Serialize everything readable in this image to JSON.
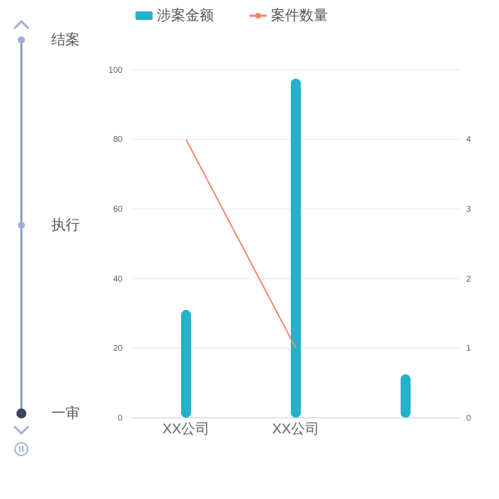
{
  "chart_data": {
    "type": "bar",
    "categories": [
      "XX公司",
      "XX公司",
      null
    ],
    "series": [
      {
        "name": "涉案金额",
        "color": "#26b0cc",
        "values": [
          31,
          97.5,
          12.5
        ]
      },
      {
        "name": "案件数量",
        "type": "line",
        "axis": "y2",
        "color": "#f4876a",
        "values": [
          4,
          1,
          null
        ]
      }
    ],
    "ylim": [
      0,
      100
    ],
    "yticks": [
      0,
      20,
      40,
      60,
      80,
      100
    ],
    "y2lim": [
      0,
      5
    ],
    "y2ticks": [
      0,
      1,
      2,
      3,
      4
    ],
    "grid": "y",
    "legend": "top",
    "marker": "none",
    "line_style": "solid",
    "annotations": [
      "结案",
      "执行",
      "一审"
    ]
  }
}
